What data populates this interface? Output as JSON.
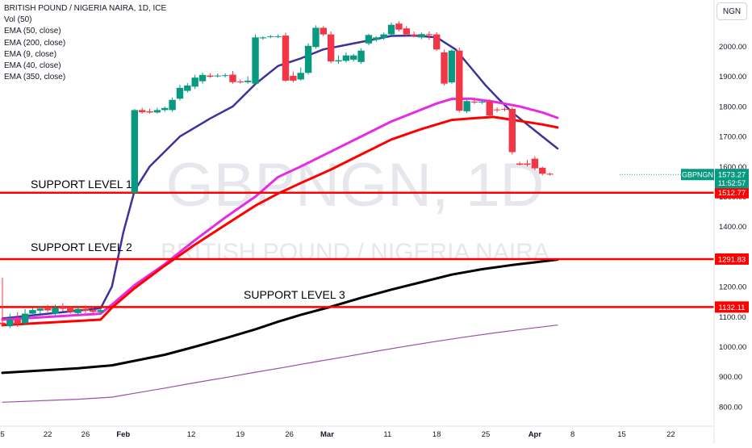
{
  "legend": {
    "title": "BRITISH POUND / NIGERIA NAIRA, 1D, ICE",
    "indicators": [
      "Vol (50)",
      "EMA (50, close)",
      "EMA (200, close)",
      "EMA (9, close)",
      "EMA (40, close)",
      "EMA (350, close)"
    ]
  },
  "currency_button": "NGN",
  "watermark": {
    "symbol": "GBPNGN, 1D",
    "name": "BRITISH POUND / NIGERIA NAIRA"
  },
  "chart_data": {
    "type": "candlestick",
    "title": "BRITISH POUND / NIGERIA NAIRA, 1D, ICE",
    "y_axis": {
      "min": 770,
      "max": 2160,
      "ticks": [
        "2000.00",
        "1900.00",
        "1800.00",
        "1700.00",
        "1600.00",
        "1500.00",
        "1400.00",
        "1300.00",
        "1200.00",
        "1100.00",
        "1000.00",
        "900.00",
        "800.00"
      ]
    },
    "x_axis": {
      "ticks": [
        {
          "label": "5",
          "i": 0
        },
        {
          "label": "22",
          "i": 12
        },
        {
          "label": "26",
          "i": 22
        },
        {
          "label": "Feb",
          "i": 32
        },
        {
          "label": "12",
          "i": 50
        },
        {
          "label": "19",
          "i": 63
        },
        {
          "label": "26",
          "i": 76
        },
        {
          "label": "Mar",
          "i": 86
        },
        {
          "label": "11",
          "i": 102
        },
        {
          "label": "18",
          "i": 115
        },
        {
          "label": "25",
          "i": 128
        },
        {
          "label": "Apr",
          "i": 141
        },
        {
          "label": "8",
          "i": 151
        },
        {
          "label": "15",
          "i": 164
        },
        {
          "label": "22",
          "i": 177
        }
      ]
    },
    "candles": [
      {
        "i": 0,
        "o": 1080,
        "h": 1230,
        "c": 1075,
        "l": 1066
      },
      {
        "i": 2,
        "o": 1068,
        "h": 1110,
        "c": 1090,
        "l": 1062
      },
      {
        "i": 4,
        "o": 1090,
        "h": 1115,
        "c": 1076,
        "l": 1066
      },
      {
        "i": 6,
        "o": 1078,
        "h": 1125,
        "c": 1110,
        "l": 1072
      },
      {
        "i": 8,
        "o": 1110,
        "h": 1130,
        "c": 1122,
        "l": 1105
      },
      {
        "i": 10,
        "o": 1120,
        "h": 1135,
        "c": 1127,
        "l": 1110
      },
      {
        "i": 12,
        "o": 1128,
        "h": 1140,
        "c": 1121,
        "l": 1115
      },
      {
        "i": 14,
        "o": 1110,
        "h": 1140,
        "c": 1130,
        "l": 1105
      },
      {
        "i": 16,
        "o": 1132,
        "h": 1145,
        "c": 1126,
        "l": 1118
      },
      {
        "i": 18,
        "o": 1128,
        "h": 1136,
        "c": 1116,
        "l": 1110
      },
      {
        "i": 20,
        "o": 1112,
        "h": 1130,
        "c": 1126,
        "l": 1105
      },
      {
        "i": 22,
        "o": 1126,
        "h": 1138,
        "c": 1120,
        "l": 1112
      },
      {
        "i": 24,
        "o": 1122,
        "h": 1134,
        "c": 1116,
        "l": 1110
      },
      {
        "i": 26,
        "o": 1115,
        "h": 1128,
        "c": 1122,
        "l": 1108
      },
      {
        "i": 35,
        "o": 1512,
        "h": 1792,
        "c": 1788,
        "l": 1510
      },
      {
        "i": 37,
        "o": 1788,
        "h": 1796,
        "c": 1781,
        "l": 1776
      },
      {
        "i": 39,
        "o": 1784,
        "h": 1792,
        "c": 1780,
        "l": 1776
      },
      {
        "i": 41,
        "o": 1780,
        "h": 1796,
        "c": 1788,
        "l": 1776
      },
      {
        "i": 43,
        "o": 1788,
        "h": 1800,
        "c": 1795,
        "l": 1782
      },
      {
        "i": 45,
        "o": 1788,
        "h": 1830,
        "c": 1822,
        "l": 1782
      },
      {
        "i": 47,
        "o": 1826,
        "h": 1872,
        "c": 1862,
        "l": 1820
      },
      {
        "i": 49,
        "o": 1852,
        "h": 1878,
        "c": 1870,
        "l": 1846
      },
      {
        "i": 51,
        "o": 1866,
        "h": 1906,
        "c": 1896,
        "l": 1858
      },
      {
        "i": 53,
        "o": 1884,
        "h": 1913,
        "c": 1905,
        "l": 1876
      },
      {
        "i": 55,
        "o": 1903,
        "h": 1911,
        "c": 1899,
        "l": 1895
      },
      {
        "i": 57,
        "o": 1902,
        "h": 1910,
        "c": 1903,
        "l": 1896
      },
      {
        "i": 59,
        "o": 1903,
        "h": 1910,
        "c": 1904,
        "l": 1897
      },
      {
        "i": 61,
        "o": 1906,
        "h": 1918,
        "c": 1881,
        "l": 1876
      },
      {
        "i": 63,
        "o": 1883,
        "h": 1890,
        "c": 1881,
        "l": 1876
      },
      {
        "i": 65,
        "o": 1881,
        "h": 1900,
        "c": 1886,
        "l": 1876
      },
      {
        "i": 67,
        "o": 1876,
        "h": 2040,
        "c": 2030,
        "l": 1872
      },
      {
        "i": 69,
        "o": 2027,
        "h": 2034,
        "c": 2030,
        "l": 2022
      },
      {
        "i": 71,
        "o": 2032,
        "h": 2038,
        "c": 2034,
        "l": 2027
      },
      {
        "i": 73,
        "o": 2034,
        "h": 2040,
        "c": 2034,
        "l": 2028
      },
      {
        "i": 75,
        "o": 2036,
        "h": 2046,
        "c": 1886,
        "l": 1882
      },
      {
        "i": 77,
        "o": 1902,
        "h": 1916,
        "c": 1886,
        "l": 1880
      },
      {
        "i": 79,
        "o": 1890,
        "h": 1930,
        "c": 1912,
        "l": 1886
      },
      {
        "i": 81,
        "o": 1912,
        "h": 2010,
        "c": 2002,
        "l": 1906
      },
      {
        "i": 83,
        "o": 1998,
        "h": 2070,
        "c": 2062,
        "l": 1992
      },
      {
        "i": 85,
        "o": 2062,
        "h": 2068,
        "c": 2040,
        "l": 2034
      },
      {
        "i": 87,
        "o": 2040,
        "h": 2050,
        "c": 1950,
        "l": 1944
      },
      {
        "i": 89,
        "o": 1950,
        "h": 1970,
        "c": 1954,
        "l": 1942
      },
      {
        "i": 91,
        "o": 1952,
        "h": 1980,
        "c": 1970,
        "l": 1946
      },
      {
        "i": 93,
        "o": 1956,
        "h": 1975,
        "c": 1970,
        "l": 1950
      },
      {
        "i": 95,
        "o": 1948,
        "h": 1994,
        "c": 1986,
        "l": 1942
      },
      {
        "i": 97,
        "o": 2010,
        "h": 2042,
        "c": 2038,
        "l": 2004
      },
      {
        "i": 99,
        "o": 2022,
        "h": 2034,
        "c": 2030,
        "l": 2016
      },
      {
        "i": 101,
        "o": 2028,
        "h": 2046,
        "c": 2040,
        "l": 2022
      },
      {
        "i": 103,
        "o": 2040,
        "h": 2080,
        "c": 2072,
        "l": 2036
      },
      {
        "i": 105,
        "o": 2076,
        "h": 2084,
        "c": 2056,
        "l": 2050
      },
      {
        "i": 107,
        "o": 2060,
        "h": 2068,
        "c": 2040,
        "l": 2034
      },
      {
        "i": 109,
        "o": 2040,
        "h": 2050,
        "c": 2035,
        "l": 2030
      },
      {
        "i": 111,
        "o": 2030,
        "h": 2046,
        "c": 2041,
        "l": 2024
      },
      {
        "i": 113,
        "o": 2041,
        "h": 2050,
        "c": 2038,
        "l": 2022
      },
      {
        "i": 115,
        "o": 2040,
        "h": 2047,
        "c": 1990,
        "l": 1985
      },
      {
        "i": 117,
        "o": 1980,
        "h": 1990,
        "c": 1876,
        "l": 1870
      },
      {
        "i": 119,
        "o": 1880,
        "h": 1990,
        "c": 1986,
        "l": 1876
      },
      {
        "i": 121,
        "o": 1986,
        "h": 1996,
        "c": 1786,
        "l": 1780
      },
      {
        "i": 123,
        "o": 1784,
        "h": 1822,
        "c": 1818,
        "l": 1778
      },
      {
        "i": 125,
        "o": 1816,
        "h": 1828,
        "c": 1814,
        "l": 1808
      },
      {
        "i": 127,
        "o": 1814,
        "h": 1822,
        "c": 1816,
        "l": 1808
      },
      {
        "i": 129,
        "o": 1816,
        "h": 1824,
        "c": 1770,
        "l": 1764
      },
      {
        "i": 131,
        "o": 1790,
        "h": 1797,
        "c": 1788,
        "l": 1781
      },
      {
        "i": 133,
        "o": 1792,
        "h": 1798,
        "c": 1790,
        "l": 1784
      },
      {
        "i": 135,
        "o": 1792,
        "h": 1797,
        "c": 1648,
        "l": 1640
      },
      {
        "i": 137,
        "o": 1610,
        "h": 1616,
        "c": 1606,
        "l": 1604
      },
      {
        "i": 139,
        "o": 1610,
        "h": 1622,
        "c": 1606,
        "l": 1600
      },
      {
        "i": 141,
        "o": 1626,
        "h": 1634,
        "c": 1594,
        "l": 1588
      },
      {
        "i": 143,
        "o": 1596,
        "h": 1600,
        "c": 1576,
        "l": 1570
      },
      {
        "i": 145,
        "o": 1576,
        "h": 1580,
        "c": 1573,
        "l": 1570
      }
    ],
    "emas": [
      {
        "name": "EMA (9, close)",
        "color": "#3a3399",
        "width": 2.5,
        "points": [
          [
            0,
            1094
          ],
          [
            26,
            1128
          ],
          [
            29,
            1200
          ],
          [
            32,
            1380
          ],
          [
            35,
            1520
          ],
          [
            39,
            1600
          ],
          [
            47,
            1700
          ],
          [
            55,
            1760
          ],
          [
            61,
            1800
          ],
          [
            67,
            1875
          ],
          [
            73,
            1935
          ],
          [
            79,
            1960
          ],
          [
            85,
            1990
          ],
          [
            91,
            2005
          ],
          [
            97,
            2020
          ],
          [
            103,
            2035
          ],
          [
            109,
            2036
          ],
          [
            115,
            2030
          ],
          [
            120,
            1990
          ],
          [
            124,
            1930
          ],
          [
            128,
            1870
          ],
          [
            131,
            1830
          ],
          [
            135,
            1780
          ],
          [
            139,
            1740
          ],
          [
            143,
            1700
          ],
          [
            147,
            1660
          ]
        ]
      },
      {
        "name": "EMA (40, close)",
        "color": "#e52be5",
        "width": 3,
        "points": [
          [
            0,
            1090
          ],
          [
            26,
            1110
          ],
          [
            29,
            1140
          ],
          [
            35,
            1205
          ],
          [
            43,
            1275
          ],
          [
            51,
            1355
          ],
          [
            59,
            1430
          ],
          [
            67,
            1500
          ],
          [
            73,
            1565
          ],
          [
            79,
            1600
          ],
          [
            87,
            1650
          ],
          [
            95,
            1700
          ],
          [
            103,
            1750
          ],
          [
            111,
            1790
          ],
          [
            115,
            1810
          ],
          [
            119,
            1825
          ],
          [
            124,
            1826
          ],
          [
            130,
            1816
          ],
          [
            137,
            1800
          ],
          [
            143,
            1780
          ],
          [
            147,
            1762
          ]
        ]
      },
      {
        "name": "EMA (50, close)",
        "color": "#ff0000",
        "width": 3,
        "points": [
          [
            0,
            1072
          ],
          [
            26,
            1090
          ],
          [
            29,
            1130
          ],
          [
            35,
            1195
          ],
          [
            43,
            1270
          ],
          [
            51,
            1340
          ],
          [
            59,
            1405
          ],
          [
            67,
            1470
          ],
          [
            73,
            1510
          ],
          [
            79,
            1545
          ],
          [
            87,
            1590
          ],
          [
            95,
            1640
          ],
          [
            103,
            1690
          ],
          [
            111,
            1725
          ],
          [
            115,
            1740
          ],
          [
            119,
            1755
          ],
          [
            124,
            1760
          ],
          [
            130,
            1765
          ],
          [
            137,
            1752
          ],
          [
            143,
            1740
          ],
          [
            147,
            1730
          ]
        ]
      },
      {
        "name": "EMA (200, close)",
        "color": "#000000",
        "width": 3,
        "points": [
          [
            0,
            913
          ],
          [
            20,
            928
          ],
          [
            29,
            938
          ],
          [
            35,
            953
          ],
          [
            43,
            973
          ],
          [
            51,
            1000
          ],
          [
            59,
            1028
          ],
          [
            67,
            1058
          ],
          [
            73,
            1083
          ],
          [
            79,
            1106
          ],
          [
            87,
            1133
          ],
          [
            95,
            1163
          ],
          [
            103,
            1190
          ],
          [
            111,
            1215
          ],
          [
            119,
            1240
          ],
          [
            127,
            1258
          ],
          [
            135,
            1272
          ],
          [
            143,
            1284
          ],
          [
            147,
            1290
          ]
        ]
      },
      {
        "name": "EMA (350, close)",
        "color": "#9c4fa8",
        "width": 1.2,
        "points": [
          [
            0,
            815
          ],
          [
            20,
            825
          ],
          [
            29,
            832
          ],
          [
            35,
            845
          ],
          [
            43,
            862
          ],
          [
            51,
            880
          ],
          [
            59,
            897
          ],
          [
            67,
            915
          ],
          [
            75,
            932
          ],
          [
            83,
            950
          ],
          [
            91,
            967
          ],
          [
            99,
            985
          ],
          [
            107,
            1002
          ],
          [
            115,
            1018
          ],
          [
            123,
            1033
          ],
          [
            131,
            1047
          ],
          [
            139,
            1060
          ],
          [
            147,
            1072
          ]
        ]
      }
    ],
    "support_lines": [
      {
        "label": "SUPPORT LEVEL 1",
        "value": 1512.77,
        "price_label": "1512.77"
      },
      {
        "label": "SUPPORT LEVEL 2",
        "value": 1291.83,
        "price_label": "1291.83"
      },
      {
        "label": "SUPPORT LEVEL 3",
        "value": 1132.11,
        "price_label": "1132.11"
      }
    ],
    "last_price": {
      "symbol": "GBPNGN",
      "value": 1573.27,
      "price_label": "1573.27",
      "countdown": "11:52:57"
    },
    "colors": {
      "up": "#089981",
      "down": "#f23645",
      "support": "#ff0000",
      "last": "#089981"
    }
  }
}
